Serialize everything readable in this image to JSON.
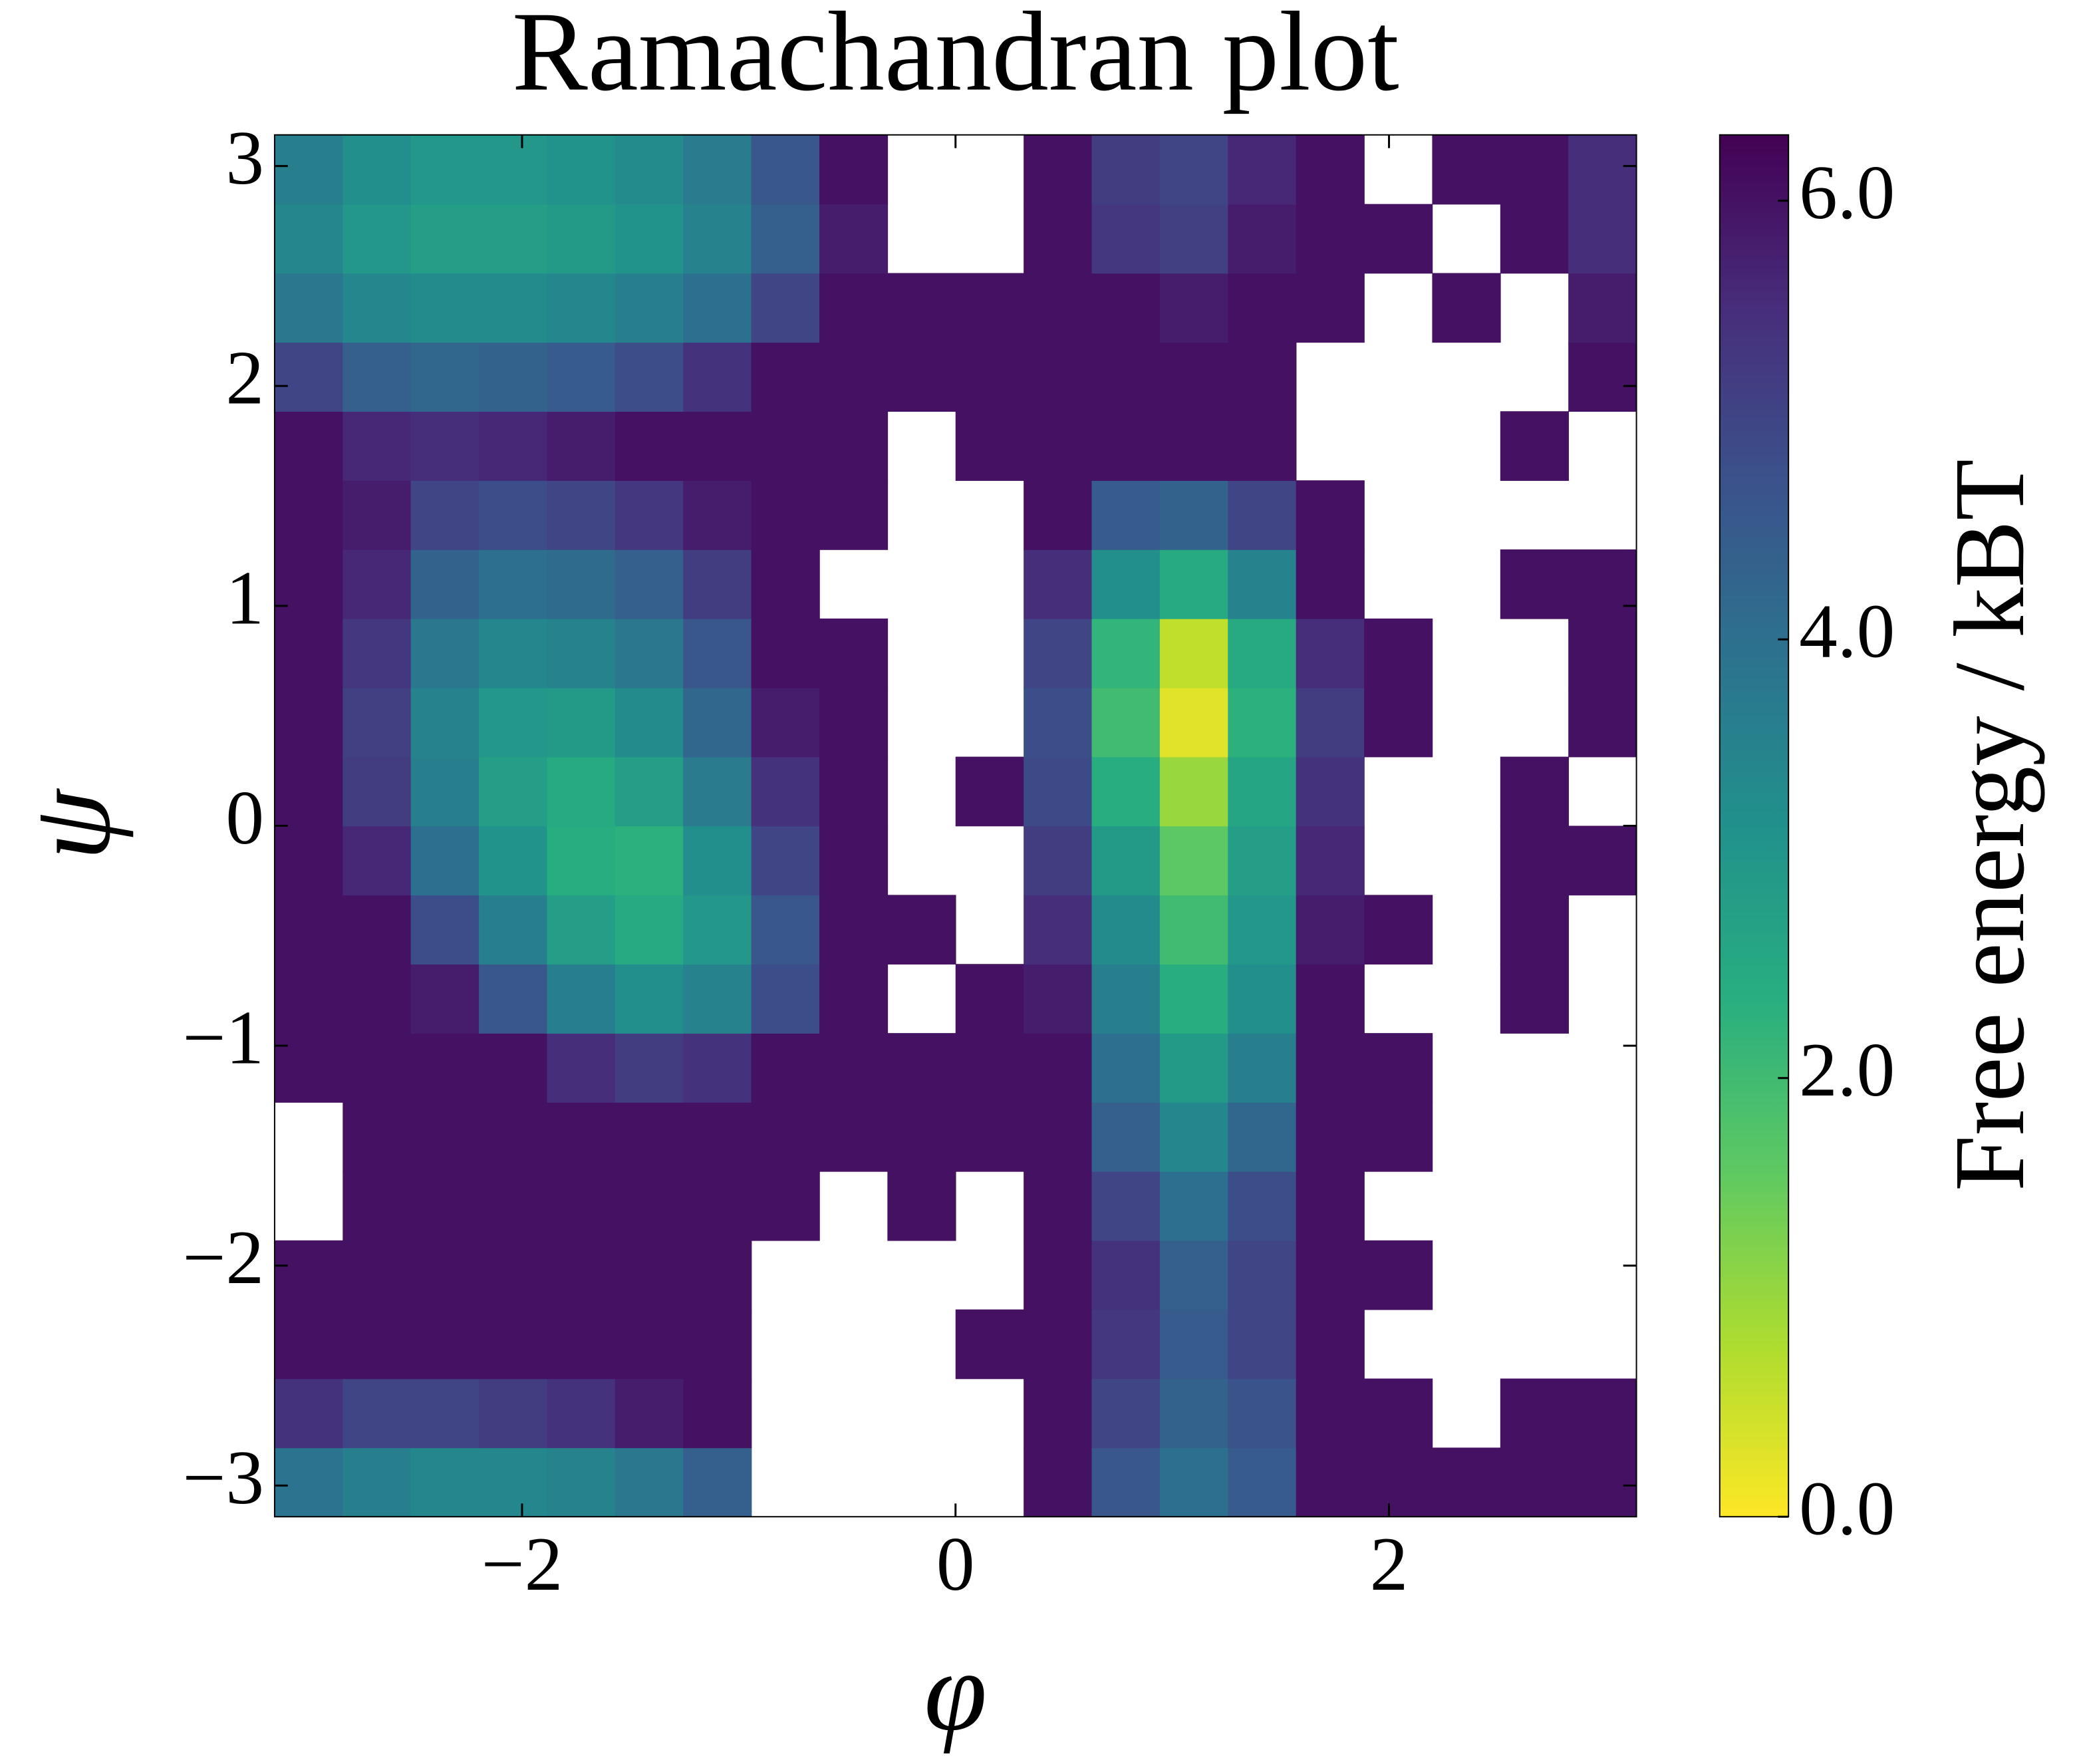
{
  "chart_data": {
    "type": "heatmap",
    "title": "Ramachandran plot",
    "x_label": "φ",
    "y_label": "ψ",
    "colorbar_label": "Free energy / kBT",
    "xbins": [
      -3.1416,
      -2.8274,
      -2.5133,
      -2.1991,
      -1.885,
      -1.5708,
      -1.2566,
      -0.9425,
      -0.6283,
      -0.3142,
      0,
      0.3142,
      0.6283,
      0.9425,
      1.2566,
      1.5708,
      1.885,
      2.1991,
      2.5133,
      2.8274,
      3.1416
    ],
    "ybins": [
      -3.1416,
      -2.8274,
      -2.5133,
      -2.1991,
      -1.885,
      -1.5708,
      -1.2566,
      -0.9425,
      -0.6283,
      -0.3142,
      0,
      0.3142,
      0.6283,
      0.9425,
      1.2566,
      1.5708,
      1.885,
      2.1991,
      2.5133,
      2.8274,
      3.1416
    ],
    "values": [
      [
        3.9,
        3.6,
        3.4,
        3.4,
        3.5,
        3.8,
        4.4,
        null,
        null,
        null,
        null,
        6.0,
        4.6,
        4.0,
        4.5,
        6.0,
        6.0,
        6.0,
        6.0,
        6.0
      ],
      [
        5.4,
        5.0,
        5.0,
        5.2,
        5.4,
        5.8,
        6.0,
        null,
        null,
        null,
        null,
        6.0,
        5.0,
        4.3,
        4.7,
        6.0,
        6.0,
        null,
        6.0,
        6.0
      ],
      [
        6.0,
        6.0,
        6.0,
        6.0,
        6.0,
        6.0,
        6.0,
        null,
        null,
        null,
        6.0,
        6.0,
        5.3,
        4.5,
        5.0,
        6.0,
        null,
        null,
        null,
        null
      ],
      [
        6.0,
        6.0,
        6.0,
        6.0,
        6.0,
        6.0,
        6.0,
        null,
        null,
        null,
        null,
        6.0,
        5.4,
        4.4,
        5.0,
        6.0,
        6.0,
        null,
        null,
        null
      ],
      [
        null,
        6.0,
        6.0,
        6.0,
        6.0,
        6.0,
        6.0,
        6.0,
        null,
        6.0,
        null,
        6.0,
        5.0,
        4.0,
        4.8,
        6.0,
        null,
        null,
        null,
        null
      ],
      [
        null,
        6.0,
        6.0,
        6.0,
        6.0,
        6.0,
        6.0,
        6.0,
        6.0,
        6.0,
        6.0,
        6.0,
        4.4,
        3.4,
        4.2,
        6.0,
        6.0,
        null,
        null,
        null
      ],
      [
        6.0,
        6.0,
        6.0,
        6.0,
        5.5,
        5.2,
        5.4,
        6.0,
        6.0,
        6.0,
        6.0,
        6.0,
        4.0,
        2.9,
        3.6,
        6.0,
        6.0,
        null,
        null,
        null
      ],
      [
        6.0,
        6.0,
        5.8,
        4.6,
        3.6,
        3.2,
        3.5,
        4.8,
        6.0,
        null,
        6.0,
        5.8,
        3.6,
        2.4,
        3.2,
        6.0,
        null,
        null,
        6.0,
        null
      ],
      [
        6.0,
        6.0,
        4.8,
        3.6,
        2.8,
        2.5,
        3.0,
        4.6,
        6.0,
        6.0,
        null,
        5.5,
        3.3,
        2.0,
        3.0,
        5.8,
        6.0,
        null,
        6.0,
        null
      ],
      [
        6.0,
        5.6,
        4.0,
        3.1,
        2.4,
        2.3,
        3.2,
        5.0,
        6.0,
        null,
        null,
        5.2,
        2.9,
        1.6,
        2.8,
        5.6,
        null,
        null,
        6.0,
        6.0
      ],
      [
        6.0,
        5.2,
        3.6,
        2.8,
        2.5,
        2.8,
        3.7,
        5.4,
        6.0,
        null,
        6.0,
        4.9,
        2.4,
        1.0,
        2.6,
        5.4,
        null,
        null,
        6.0,
        null
      ],
      [
        6.0,
        5.1,
        3.5,
        3.0,
        2.9,
        3.3,
        4.2,
        5.8,
        6.0,
        null,
        null,
        4.8,
        2.0,
        0.3,
        2.3,
        5.2,
        6.0,
        null,
        null,
        6.0
      ],
      [
        6.0,
        5.3,
        3.8,
        3.4,
        3.5,
        3.8,
        4.6,
        6.0,
        6.0,
        null,
        null,
        5.0,
        2.2,
        0.6,
        2.5,
        5.5,
        6.0,
        null,
        null,
        6.0
      ],
      [
        6.0,
        5.6,
        4.3,
        4.0,
        4.1,
        4.4,
        5.2,
        6.0,
        null,
        null,
        null,
        5.5,
        3.2,
        2.5,
        3.5,
        6.0,
        null,
        null,
        6.0,
        6.0
      ],
      [
        6.0,
        5.8,
        5.0,
        4.8,
        5.0,
        5.3,
        5.8,
        6.0,
        6.0,
        null,
        null,
        6.0,
        4.5,
        4.3,
        5.0,
        6.0,
        null,
        null,
        null,
        null
      ],
      [
        6.0,
        5.6,
        5.5,
        5.6,
        5.8,
        6.0,
        6.0,
        6.0,
        6.0,
        null,
        6.0,
        6.0,
        6.0,
        6.0,
        6.0,
        null,
        null,
        null,
        6.0,
        null
      ],
      [
        5.0,
        4.4,
        4.2,
        4.3,
        4.5,
        4.8,
        5.4,
        6.0,
        6.0,
        6.0,
        6.0,
        6.0,
        6.0,
        6.0,
        6.0,
        null,
        null,
        null,
        null,
        6.0
      ],
      [
        3.8,
        3.4,
        3.3,
        3.3,
        3.4,
        3.6,
        4.0,
        5.0,
        6.0,
        6.0,
        6.0,
        6.0,
        6.0,
        5.8,
        6.0,
        6.0,
        null,
        6.0,
        null,
        5.8
      ],
      [
        3.4,
        3.0,
        2.8,
        2.8,
        2.9,
        3.1,
        3.5,
        4.4,
        5.8,
        null,
        null,
        6.0,
        5.3,
        5.1,
        5.8,
        6.0,
        6.0,
        null,
        6.0,
        5.5
      ],
      [
        3.6,
        3.2,
        3.0,
        3.0,
        3.1,
        3.3,
        3.7,
        4.6,
        6.0,
        null,
        null,
        6.0,
        5.2,
        5.0,
        5.6,
        6.0,
        null,
        6.0,
        6.0,
        5.5
      ]
    ],
    "xlim": [
      -3.1416,
      3.1416
    ],
    "ylim": [
      -3.1416,
      3.1416
    ],
    "xticks": [
      {
        "value": -2,
        "label": "−2"
      },
      0,
      2
    ],
    "yticks": [
      {
        "value": -3,
        "label": "−3"
      },
      {
        "value": -2,
        "label": "−2"
      },
      {
        "value": -1,
        "label": "−1"
      },
      0,
      1,
      2,
      3
    ],
    "clim": [
      0,
      6.3
    ],
    "cticks": [
      {
        "value": 0,
        "label": "0.0"
      },
      {
        "value": 2,
        "label": "2.0"
      },
      {
        "value": 4,
        "label": "4.0"
      },
      {
        "value": 6,
        "label": "6.0"
      }
    ],
    "colorscale": [
      "#fde725",
      "#addc30",
      "#5ec962",
      "#28ae80",
      "#21918c",
      "#2c728e",
      "#3b528b",
      "#472d7b",
      "#440154"
    ]
  }
}
